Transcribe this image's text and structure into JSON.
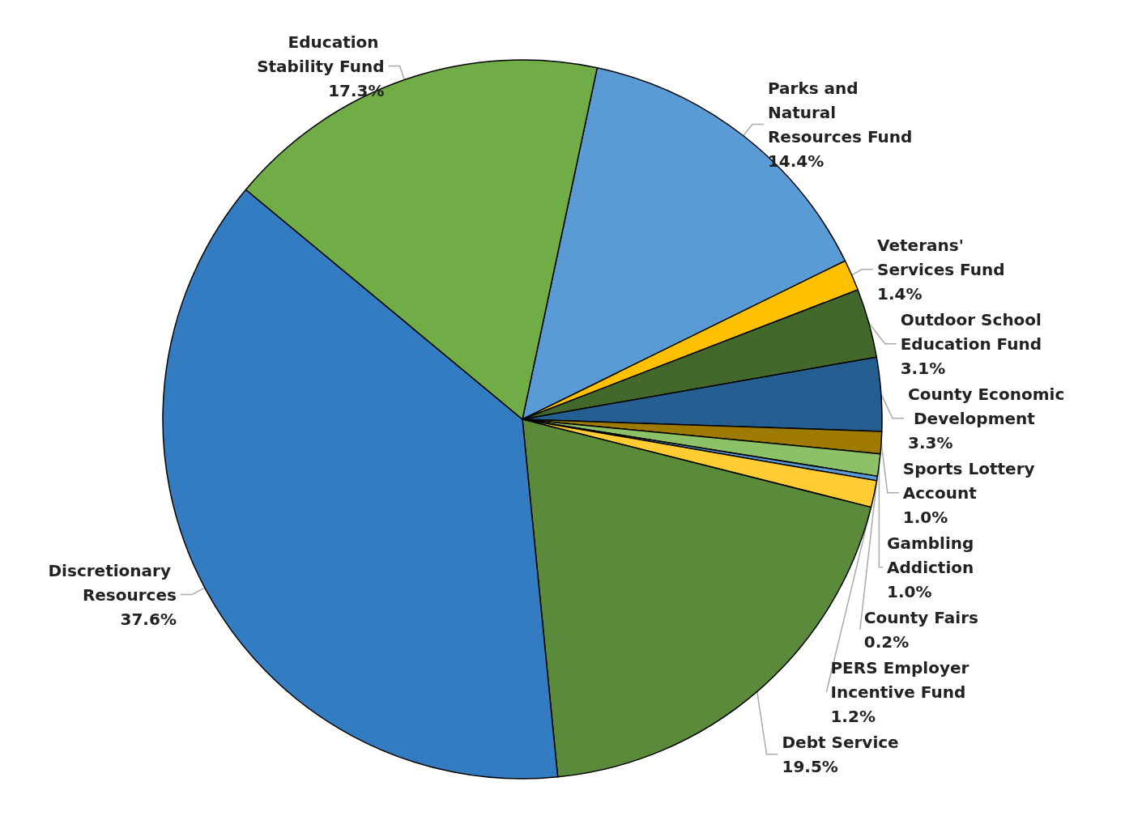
{
  "chart_data": {
    "type": "pie",
    "categories": [
      "Parks and Natural Resources Fund",
      "Veterans' Services Fund",
      "Outdoor School Education Fund",
      "County Economic Development",
      "Sports Lottery Account",
      "Gambling Addiction",
      "County Fairs",
      "PERS Employer Incentive Fund",
      "Debt Service",
      "Discretionary Resources",
      "Education Stability Fund"
    ],
    "values": [
      14.4,
      1.4,
      3.1,
      3.3,
      1.0,
      1.0,
      0.2,
      1.2,
      19.5,
      37.6,
      17.3
    ],
    "value_labels": [
      "14.4%",
      "1.4%",
      "3.1%",
      "3.3%",
      "1.0%",
      "1.0%",
      "0.2%",
      "1.2%",
      "19.5%",
      "37.6%",
      "17.3%"
    ],
    "colors": [
      "#5b9bd5",
      "#ffc000",
      "#43682b",
      "#255e91",
      "#9e7b00",
      "#8cc168",
      "#5b9bd5",
      "#ffcd33",
      "#5a8a3a",
      "#337cc1",
      "#70ad47"
    ],
    "legend": false
  }
}
